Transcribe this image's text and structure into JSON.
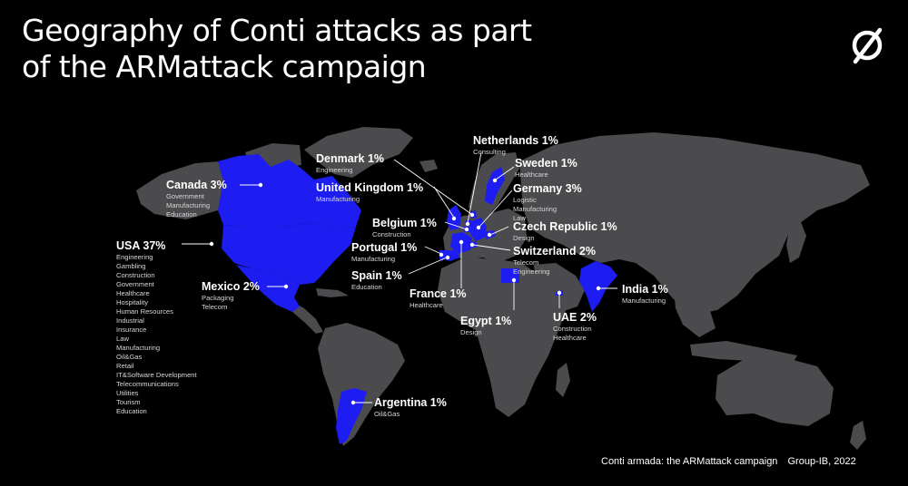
{
  "title": {
    "line1": "Geography of Conti attacks as part",
    "line2": "of the ARMattack campaign"
  },
  "colors": {
    "background": "#000000",
    "land": "#4b4b4e",
    "highlight": "#1d1df2",
    "text": "#ffffff"
  },
  "logo": {
    "icon": "slashed-circle-logo-icon"
  },
  "countries": [
    {
      "id": "canada",
      "name": "Canada 3%",
      "sectors": [
        "Government",
        "Manufacturing",
        "Education"
      ]
    },
    {
      "id": "usa",
      "name": "USA 37%",
      "sectors": [
        "Engineering",
        "Gambling",
        "Construction",
        "Government",
        "Healthcare",
        "Hospitality",
        "Human Resources",
        "Industrial",
        "Insurance",
        "Law",
        "Manufacturing",
        "Oil&Gas",
        "Retail",
        "IT&Software Development",
        "Telecommunications",
        "Utilities",
        "Tourism",
        "Education"
      ]
    },
    {
      "id": "mexico",
      "name": "Mexico 2%",
      "sectors": [
        "Packaging",
        "Telecom"
      ]
    },
    {
      "id": "denmark",
      "name": "Denmark 1%",
      "sectors": [
        "Engineering"
      ]
    },
    {
      "id": "united-kingdom",
      "name": "United Kingdom 1%",
      "sectors": [
        "Manufacturing"
      ]
    },
    {
      "id": "belgium",
      "name": "Belgium 1%",
      "sectors": [
        "Construction"
      ]
    },
    {
      "id": "portugal",
      "name": "Portugal 1%",
      "sectors": [
        "Manufacturing"
      ]
    },
    {
      "id": "spain",
      "name": "Spain 1%",
      "sectors": [
        "Education"
      ]
    },
    {
      "id": "france",
      "name": "France 1%",
      "sectors": [
        "Healthcare"
      ]
    },
    {
      "id": "netherlands",
      "name": "Netherlands 1%",
      "sectors": [
        "Consulting"
      ]
    },
    {
      "id": "sweden",
      "name": "Sweden 1%",
      "sectors": [
        "Healthcare"
      ]
    },
    {
      "id": "germany",
      "name": "Germany 3%",
      "sectors": [
        "Logistic",
        "Manufacturing",
        "Law"
      ]
    },
    {
      "id": "czech-republic",
      "name": "Czech Republic 1%",
      "sectors": [
        "Design"
      ]
    },
    {
      "id": "switzerland",
      "name": "Switzerland 2%",
      "sectors": [
        "Telecom",
        "Engineering"
      ]
    },
    {
      "id": "egypt",
      "name": "Egypt 1%",
      "sectors": [
        "Design"
      ]
    },
    {
      "id": "uae",
      "name": "UAE 2%",
      "sectors": [
        "Construction",
        "Healthcare"
      ]
    },
    {
      "id": "india",
      "name": "India 1%",
      "sectors": [
        "Manufacturing"
      ]
    },
    {
      "id": "argentina",
      "name": "Argentina 1%",
      "sectors": [
        "Oil&Gas"
      ]
    }
  ],
  "footer": {
    "report": "Conti armada: the ARMattack campaign",
    "source": "Group-IB, 2022"
  }
}
